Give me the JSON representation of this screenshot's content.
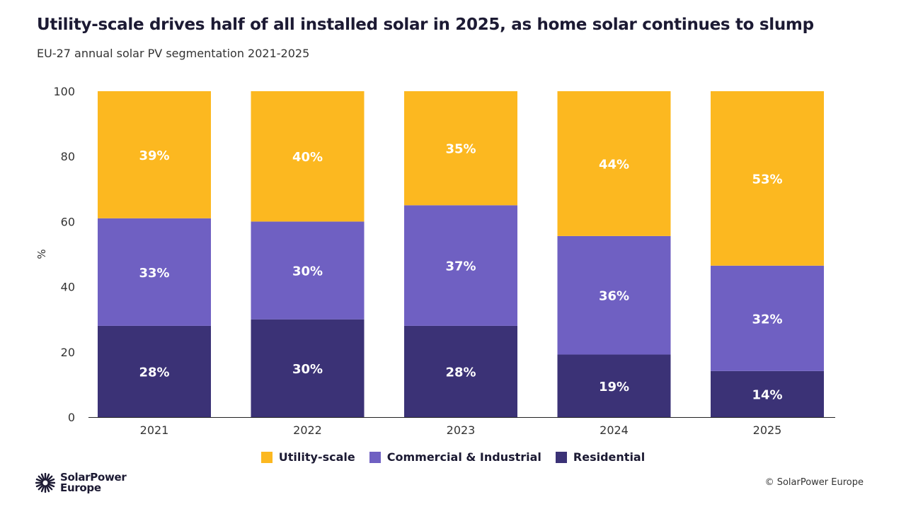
{
  "chart_data": {
    "type": "bar",
    "stacked": true,
    "title": "Utility-scale drives half of all installed solar in 2025, as home solar continues to slump",
    "subtitle": "EU-27 annual solar PV segmentation 2021-2025",
    "xlabel": "",
    "ylabel": "%",
    "ylim": [
      0,
      100
    ],
    "yticks": [
      0,
      20,
      40,
      60,
      80,
      100
    ],
    "grid": false,
    "legend_position": "bottom",
    "categories": [
      "2021",
      "2022",
      "2023",
      "2024",
      "2025"
    ],
    "series": [
      {
        "name": "Residential",
        "color": "#3b3276",
        "values": [
          28,
          30,
          28,
          19,
          14
        ]
      },
      {
        "name": "Commercial & Industrial",
        "color": "#6f60c2",
        "values": [
          33,
          30,
          37,
          36,
          32
        ]
      },
      {
        "name": "Utility-scale",
        "color": "#fcb820",
        "values": [
          39,
          40,
          35,
          44,
          53
        ]
      }
    ],
    "data_label_suffix": "%"
  },
  "legend": [
    "Utility-scale",
    "Commercial & Industrial",
    "Residential"
  ],
  "footer": {
    "logo_line1": "SolarPower",
    "logo_line2": "Europe",
    "copyright": "© SolarPower Europe"
  }
}
